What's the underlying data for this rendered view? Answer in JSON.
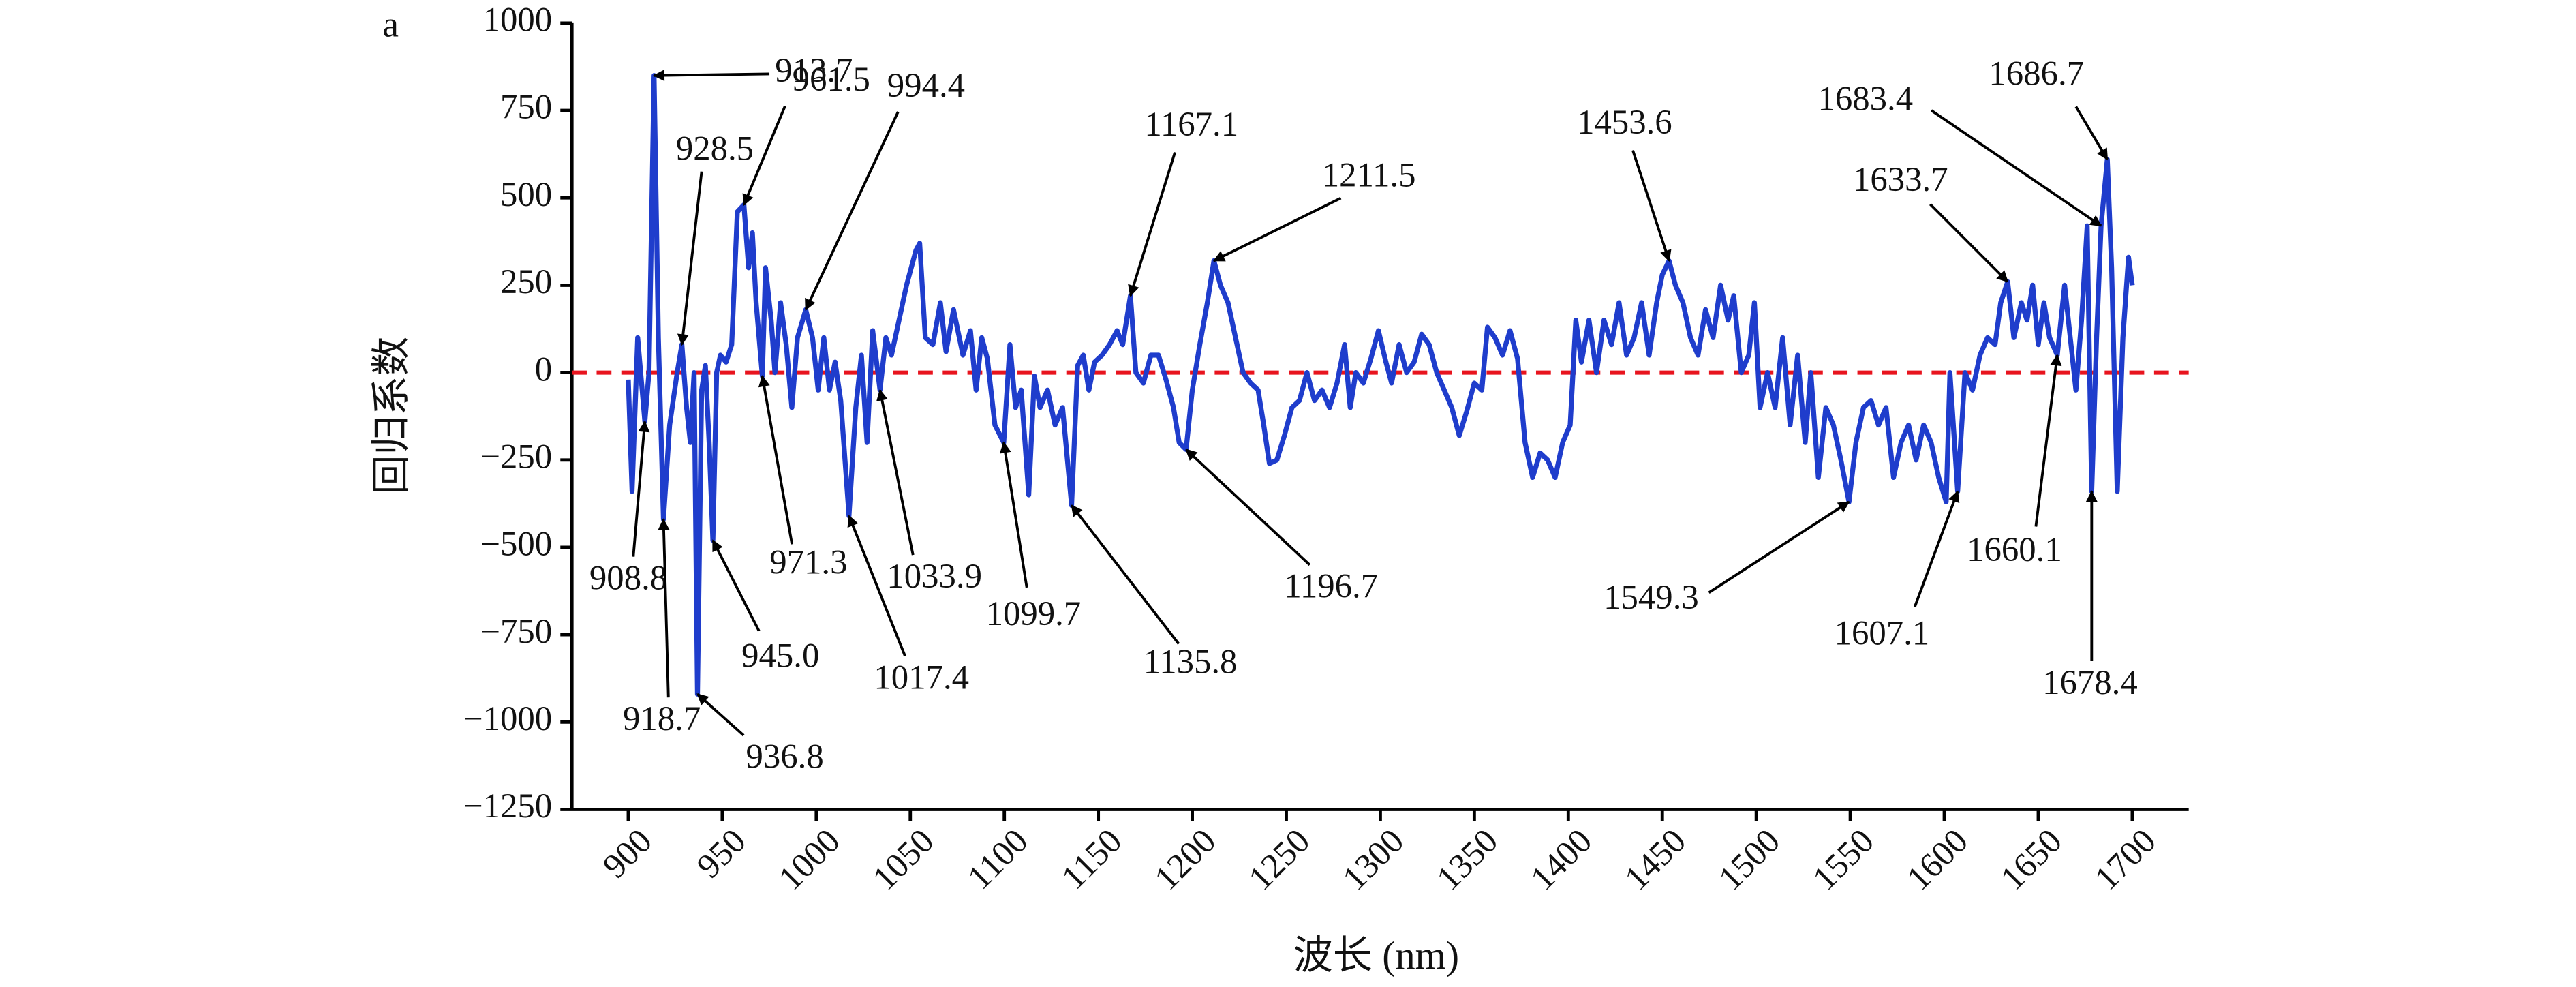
{
  "chart_data": {
    "type": "line",
    "panel_label": "a",
    "y_label": "回归系数",
    "x_label": "波长 (nm)",
    "color": "#1f3dcc",
    "hline": 0,
    "hline_color": "#e8141e",
    "xlim": [
      870,
      1730
    ],
    "ylim": [
      -1250,
      1000
    ],
    "xticks": [
      900,
      950,
      1000,
      1050,
      1100,
      1150,
      1200,
      1250,
      1300,
      1350,
      1400,
      1450,
      1500,
      1550,
      1600,
      1650,
      1700
    ],
    "yticks": [
      {
        "value": -1250,
        "label": "−1250"
      },
      {
        "value": -1000,
        "label": "−1000"
      },
      {
        "value": -750,
        "label": "−750"
      },
      {
        "value": -500,
        "label": "−500"
      },
      {
        "value": -250,
        "label": "−250"
      },
      0,
      250,
      500,
      750,
      1000
    ],
    "x": [
      900,
      902,
      905,
      908.8,
      911,
      913.7,
      916,
      918.7,
      922,
      926,
      928.5,
      931,
      933,
      935,
      936.8,
      939,
      941,
      943,
      945,
      947,
      949,
      952,
      955,
      958,
      961.5,
      964,
      966,
      968,
      971.3,
      973,
      976,
      978,
      981,
      984,
      987,
      990,
      994.4,
      998,
      1001,
      1004,
      1007,
      1010,
      1013,
      1017.4,
      1021,
      1024,
      1027,
      1030,
      1033.9,
      1037,
      1040,
      1044,
      1048,
      1053,
      1055,
      1058,
      1062,
      1066,
      1069,
      1073,
      1078,
      1082,
      1085,
      1088,
      1091,
      1095,
      1099.7,
      1103,
      1106,
      1109,
      1113,
      1116,
      1119,
      1123,
      1127,
      1131,
      1135.8,
      1139,
      1142,
      1145,
      1148,
      1152,
      1156,
      1160,
      1163,
      1167.1,
      1170,
      1174,
      1178,
      1182,
      1186,
      1190,
      1193,
      1196.7,
      1200,
      1204,
      1208,
      1211.5,
      1215,
      1219,
      1223,
      1227,
      1231,
      1235,
      1238,
      1241,
      1245,
      1249,
      1253,
      1257,
      1261,
      1265,
      1269,
      1273,
      1277,
      1281,
      1284,
      1287,
      1291,
      1295,
      1299,
      1303,
      1306,
      1310,
      1314,
      1318,
      1322,
      1326,
      1330,
      1334,
      1338,
      1342,
      1346,
      1350,
      1354,
      1357,
      1361,
      1365,
      1369,
      1373,
      1377,
      1381,
      1385,
      1389,
      1393,
      1397,
      1401,
      1404,
      1407,
      1411,
      1415,
      1419,
      1423,
      1427,
      1431,
      1435,
      1439,
      1443,
      1447,
      1450,
      1453.6,
      1457,
      1461,
      1465,
      1469,
      1473,
      1477,
      1481,
      1485,
      1488,
      1492,
      1496,
      1499,
      1502,
      1506,
      1510,
      1514,
      1518,
      1522,
      1526,
      1529,
      1533,
      1537,
      1541,
      1545,
      1549.3,
      1553,
      1557,
      1561,
      1565,
      1569,
      1573,
      1577,
      1581,
      1585,
      1589,
      1593,
      1597,
      1601,
      1603,
      1607.1,
      1611,
      1615,
      1619,
      1623,
      1627,
      1630,
      1633.7,
      1637,
      1641,
      1644,
      1647,
      1650,
      1653,
      1656,
      1660.1,
      1664,
      1667,
      1670,
      1673,
      1676,
      1678.4,
      1681,
      1683.4,
      1686.7,
      1689,
      1692,
      1695,
      1698,
      1700
    ],
    "values": [
      -20,
      -340,
      100,
      -140,
      0,
      850,
      100,
      -420,
      -150,
      0,
      80,
      -100,
      -200,
      0,
      -920,
      -50,
      20,
      -200,
      -480,
      0,
      50,
      30,
      80,
      460,
      480,
      300,
      400,
      200,
      -10,
      300,
      150,
      0,
      200,
      80,
      -100,
      100,
      180,
      100,
      -50,
      100,
      -50,
      30,
      -80,
      -410,
      -100,
      50,
      -200,
      120,
      -50,
      100,
      50,
      150,
      250,
      350,
      370,
      100,
      80,
      200,
      60,
      180,
      50,
      120,
      -50,
      100,
      40,
      -150,
      -200,
      80,
      -100,
      -50,
      -350,
      -10,
      -100,
      -50,
      -150,
      -100,
      -380,
      20,
      50,
      -50,
      30,
      50,
      80,
      120,
      80,
      220,
      0,
      -30,
      50,
      50,
      -20,
      -100,
      -200,
      -220,
      -50,
      80,
      200,
      320,
      250,
      200,
      100,
      0,
      -30,
      -50,
      -150,
      -260,
      -250,
      -180,
      -100,
      -80,
      0,
      -80,
      -50,
      -100,
      -30,
      80,
      -100,
      0,
      -30,
      40,
      120,
      30,
      -30,
      80,
      0,
      30,
      110,
      80,
      0,
      -50,
      -100,
      -180,
      -110,
      -30,
      -50,
      130,
      100,
      50,
      120,
      40,
      -200,
      -300,
      -230,
      -250,
      -300,
      -200,
      -150,
      150,
      30,
      150,
      0,
      150,
      80,
      200,
      50,
      100,
      200,
      50,
      200,
      280,
      320,
      250,
      200,
      100,
      50,
      180,
      100,
      250,
      150,
      220,
      0,
      50,
      200,
      -100,
      0,
      -100,
      100,
      -150,
      50,
      -200,
      0,
      -300,
      -100,
      -150,
      -250,
      -370,
      -200,
      -100,
      -80,
      -150,
      -100,
      -300,
      -200,
      -150,
      -250,
      -150,
      -200,
      -300,
      -370,
      0,
      -340,
      0,
      -50,
      50,
      100,
      80,
      200,
      260,
      100,
      200,
      150,
      250,
      80,
      200,
      100,
      50,
      250,
      100,
      -50,
      150,
      420,
      -340,
      100,
      420,
      610,
      300,
      -340,
      100,
      330,
      250
    ],
    "annotations": [
      {
        "label": "913.7",
        "x": 913.7,
        "y": 850
      },
      {
        "label": "928.5",
        "x": 928.5,
        "y": 80
      },
      {
        "label": "961.5",
        "x": 961.5,
        "y": 480
      },
      {
        "label": "994.4",
        "x": 994.4,
        "y": 180
      },
      {
        "label": "1167.1",
        "x": 1167.1,
        "y": 220
      },
      {
        "label": "1211.5",
        "x": 1211.5,
        "y": 320
      },
      {
        "label": "1453.6",
        "x": 1453.6,
        "y": 320
      },
      {
        "label": "1633.7",
        "x": 1633.7,
        "y": 260
      },
      {
        "label": "1683.4",
        "x": 1683.4,
        "y": 420
      },
      {
        "label": "1686.7",
        "x": 1686.7,
        "y": 610
      },
      {
        "label": "908.8",
        "x": 908.8,
        "y": -140
      },
      {
        "label": "918.7",
        "x": 918.7,
        "y": -420
      },
      {
        "label": "936.8",
        "x": 936.8,
        "y": -920
      },
      {
        "label": "945.0",
        "x": 945.0,
        "y": -480
      },
      {
        "label": "971.3",
        "x": 971.3,
        "y": -10
      },
      {
        "label": "1017.4",
        "x": 1017.4,
        "y": -410
      },
      {
        "label": "1033.9",
        "x": 1033.9,
        "y": -50
      },
      {
        "label": "1099.7",
        "x": 1099.7,
        "y": -200
      },
      {
        "label": "1135.8",
        "x": 1135.8,
        "y": -380
      },
      {
        "label": "1196.7",
        "x": 1196.7,
        "y": -220
      },
      {
        "label": "1549.3",
        "x": 1549.3,
        "y": -370
      },
      {
        "label": "1607.1",
        "x": 1607.1,
        "y": -340
      },
      {
        "label": "1660.1",
        "x": 1660.1,
        "y": 50
      },
      {
        "label": "1678.4",
        "x": 1678.4,
        "y": -340
      }
    ]
  }
}
